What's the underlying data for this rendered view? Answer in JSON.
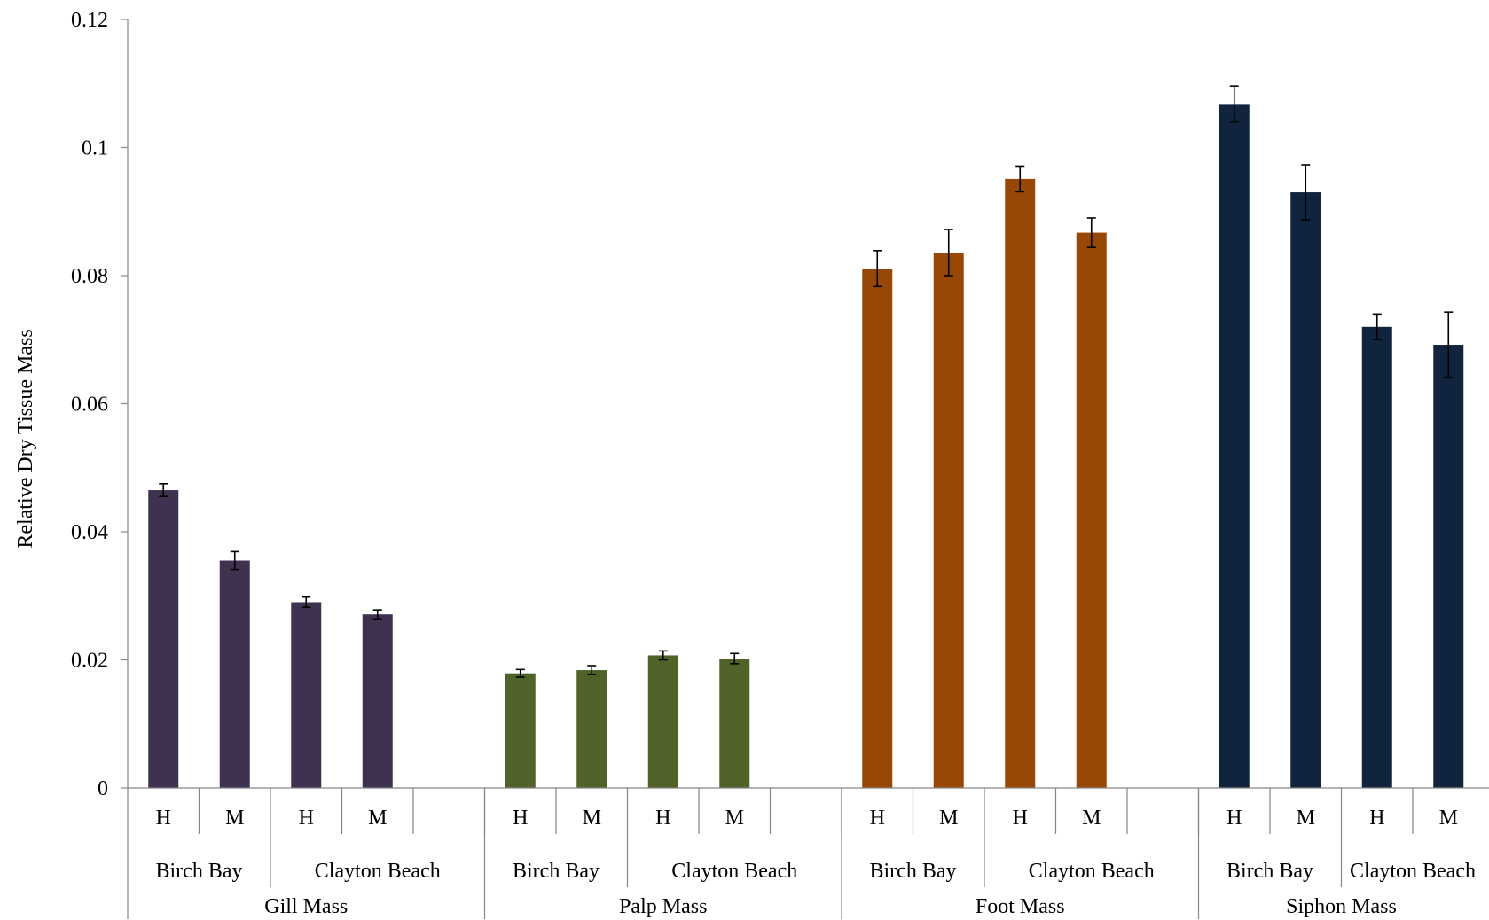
{
  "chart_data": {
    "type": "bar",
    "ylabel": "Relative Dry Tissue Mass",
    "ylim": [
      0,
      0.12
    ],
    "yticks": [
      0,
      0.02,
      0.04,
      0.06,
      0.08,
      0.1,
      0.12
    ],
    "ytick_labels": [
      "0",
      "0.02",
      "0.04",
      "0.06",
      "0.08",
      "0.1",
      "0.12"
    ],
    "grid": false,
    "legend": "none",
    "groups": [
      {
        "name": "Gill Mass",
        "color": "#3f3150",
        "sites": [
          {
            "name": "Birch Bay",
            "bars": [
              {
                "label": "H",
                "value": 0.0465,
                "error": 0.001
              },
              {
                "label": "M",
                "value": 0.0355,
                "error": 0.0014
              }
            ]
          },
          {
            "name": "Clayton Beach",
            "bars": [
              {
                "label": "H",
                "value": 0.029,
                "error": 0.0008
              },
              {
                "label": "M",
                "value": 0.0271,
                "error": 0.0007
              }
            ]
          }
        ]
      },
      {
        "name": "Palp Mass",
        "color": "#4f6228",
        "sites": [
          {
            "name": "Birch Bay",
            "bars": [
              {
                "label": "H",
                "value": 0.0179,
                "error": 0.0006
              },
              {
                "label": "M",
                "value": 0.0184,
                "error": 0.0007
              }
            ]
          },
          {
            "name": "Clayton Beach",
            "bars": [
              {
                "label": "H",
                "value": 0.0207,
                "error": 0.0007
              },
              {
                "label": "M",
                "value": 0.0202,
                "error": 0.0008
              }
            ]
          }
        ]
      },
      {
        "name": "Foot Mass",
        "color": "#974806",
        "sites": [
          {
            "name": "Birch Bay",
            "bars": [
              {
                "label": "H",
                "value": 0.0811,
                "error": 0.0028
              },
              {
                "label": "M",
                "value": 0.0836,
                "error": 0.0036
              }
            ]
          },
          {
            "name": "Clayton Beach",
            "bars": [
              {
                "label": "H",
                "value": 0.0951,
                "error": 0.002
              },
              {
                "label": "M",
                "value": 0.0867,
                "error": 0.0023
              }
            ]
          }
        ]
      },
      {
        "name": "Siphon Mass",
        "color": "#10243e",
        "sites": [
          {
            "name": "Birch Bay",
            "bars": [
              {
                "label": "H",
                "value": 0.1068,
                "error": 0.0028
              },
              {
                "label": "M",
                "value": 0.093,
                "error": 0.0043
              }
            ]
          },
          {
            "name": "Clayton Beach",
            "bars": [
              {
                "label": "H",
                "value": 0.072,
                "error": 0.002
              },
              {
                "label": "M",
                "value": 0.0692,
                "error": 0.0051
              }
            ]
          }
        ]
      }
    ]
  }
}
